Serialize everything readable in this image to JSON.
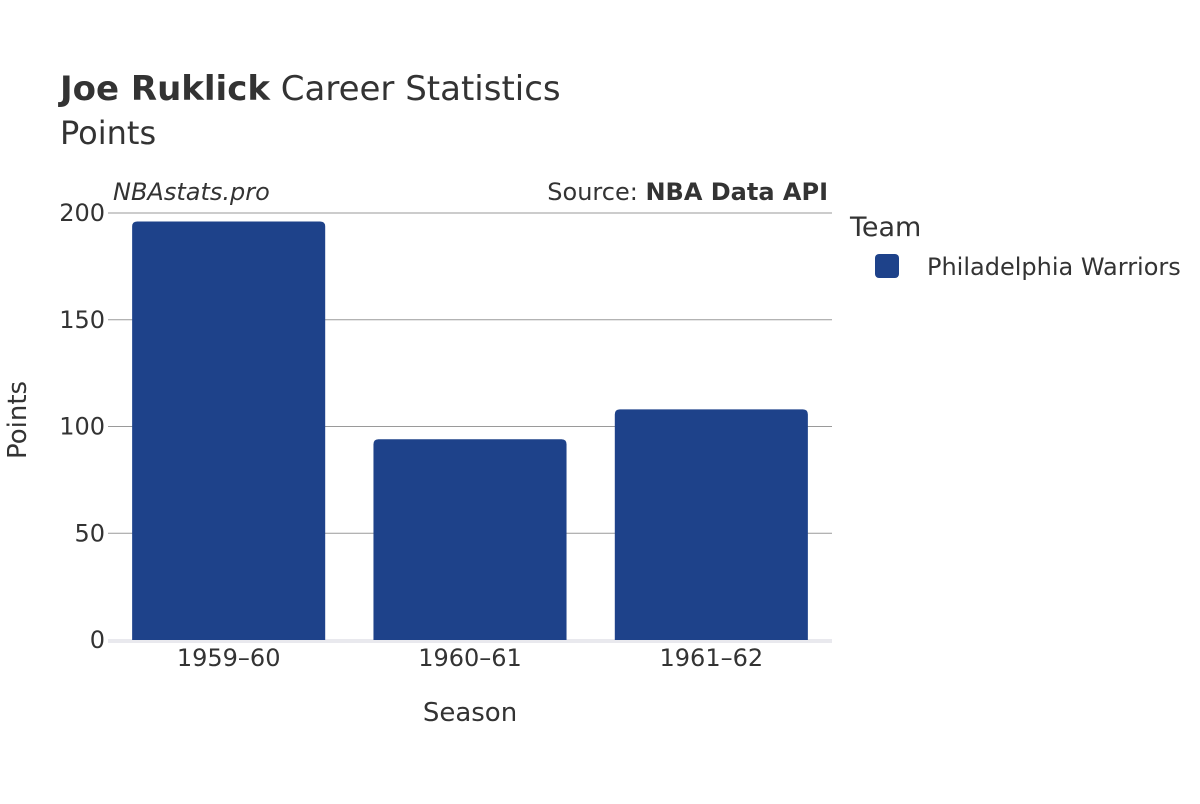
{
  "title": {
    "player_name": "Joe Ruklick",
    "suffix": " Career Statistics",
    "subtitle": "Points"
  },
  "watermark": "NBAstats.pro",
  "source": {
    "prefix": "Source: ",
    "name": "NBA Data API"
  },
  "legend": {
    "title": "Team",
    "placement": "right",
    "items": [
      {
        "label": "Philadelphia Warriors",
        "color": "#1e428a"
      }
    ]
  },
  "chart_data": {
    "type": "bar",
    "title": "Joe Ruklick Career Statistics",
    "subtitle": "Points",
    "xlabel": "Season",
    "ylabel": "Points",
    "categories": [
      "1959–60",
      "1960–61",
      "1961–62"
    ],
    "series": [
      {
        "name": "Philadelphia Warriors",
        "color": "#1e428a",
        "values": [
          196,
          94,
          108
        ]
      }
    ],
    "ylim": [
      0,
      200
    ],
    "yticks": [
      0,
      50,
      100,
      150,
      200
    ],
    "ytick_labels": [
      "0",
      "50",
      "100",
      "150",
      "200"
    ],
    "grid": true,
    "legend_placement": "right"
  }
}
